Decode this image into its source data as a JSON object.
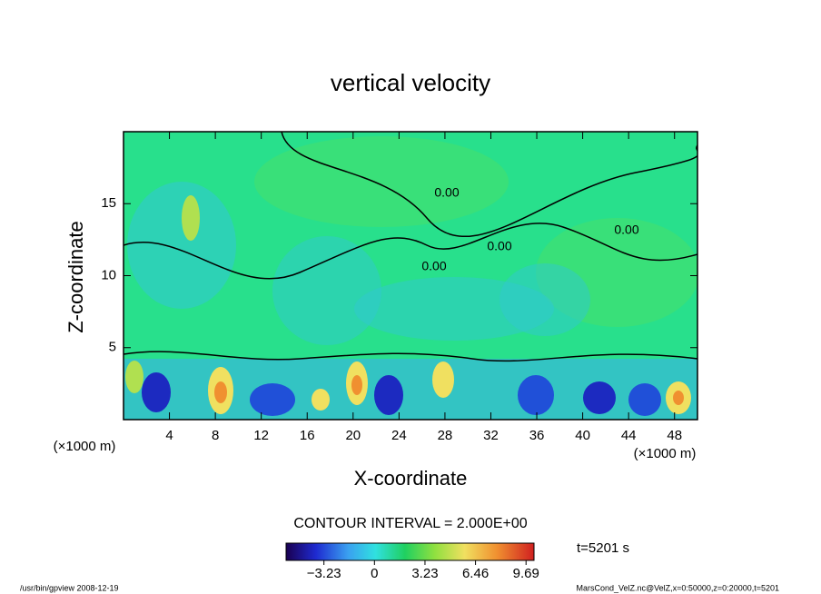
{
  "chart_data": {
    "type": "contour",
    "title": "vertical velocity",
    "x_label": "X-coordinate",
    "y_label": "Z-coordinate",
    "x_unit_label": "(×1000 m)",
    "xlim": [
      0,
      50
    ],
    "xticks": [
      4,
      8,
      12,
      16,
      20,
      24,
      28,
      32,
      36,
      40,
      44,
      48
    ],
    "ylim": [
      0,
      20
    ],
    "yticks": [
      5,
      10,
      15
    ],
    "contour_labels": [
      "0.00",
      "0.00",
      "0.00",
      "0.00"
    ],
    "contour_interval_label": "CONTOUR INTERVAL = 2.000E+00",
    "time_label": "t=5201 s",
    "colorbar": {
      "lim": [
        -5.65,
        10.2
      ],
      "ticks": [
        {
          "value": -3.23,
          "label": "−3.23"
        },
        0,
        3.23,
        6.46,
        9.69
      ]
    },
    "footer_left": "/usr/bin/gpview  2008-12-19",
    "footer_right": "MarsCond_VelZ.nc@VelZ,x=0:50000,z=0:20000,t=5201"
  }
}
